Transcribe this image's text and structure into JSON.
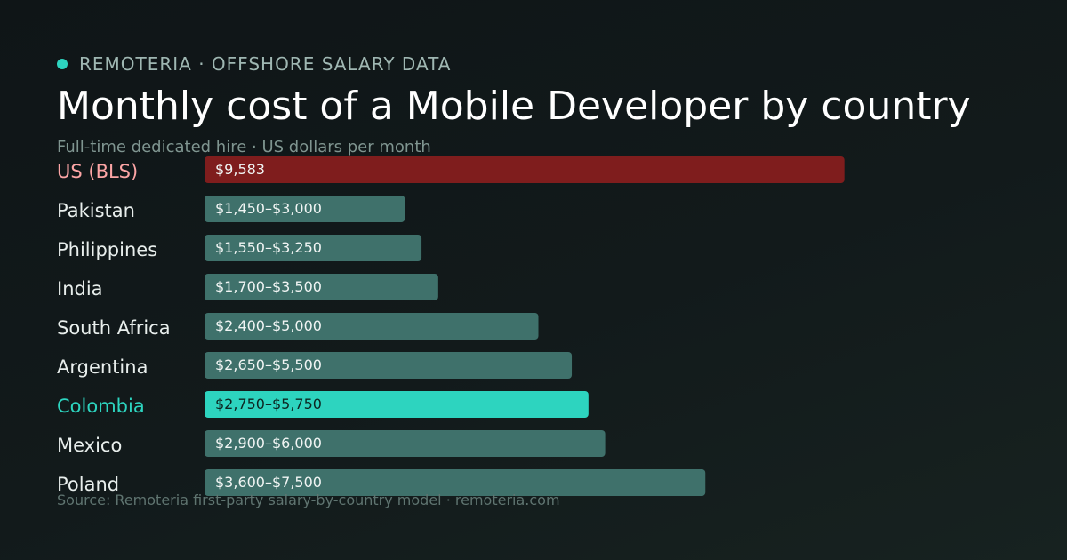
{
  "header": {
    "brand": "REMOTERIA · OFFSHORE SALARY DATA",
    "title": "Monthly cost of a Mobile Developer by country",
    "subtitle": "Full-time dedicated hire · US dollars per month"
  },
  "footer": {
    "source": "Source: Remoteria first-party salary-by-country model · remoteria.com"
  },
  "colors": {
    "accent": "#2dd4bf",
    "benchmark": "#7f1d1d",
    "default_bar": "#3f716b"
  },
  "chart_data": {
    "type": "bar",
    "orientation": "horizontal",
    "unit": "USD per month",
    "xlim": [
      0,
      12000
    ],
    "grid": false,
    "categories": [
      "US (BLS)",
      "Pakistan",
      "Philippines",
      "India",
      "South Africa",
      "Argentina",
      "Colombia",
      "Mexico",
      "Poland"
    ],
    "values": [
      9583,
      3000,
      3250,
      3500,
      5000,
      5500,
      5750,
      6000,
      7500
    ],
    "range_low": [
      null,
      1450,
      1550,
      1700,
      2400,
      2650,
      2750,
      2900,
      3600
    ],
    "data_labels": [
      "$9,583",
      "$1,450–$3,000",
      "$1,550–$3,250",
      "$1,700–$3,500",
      "$2,400–$5,000",
      "$2,650–$5,500",
      "$2,750–$5,750",
      "$2,900–$6,000",
      "$3,600–$7,500"
    ],
    "highlight": {
      "benchmark": "US (BLS)",
      "featured": "Colombia"
    }
  }
}
